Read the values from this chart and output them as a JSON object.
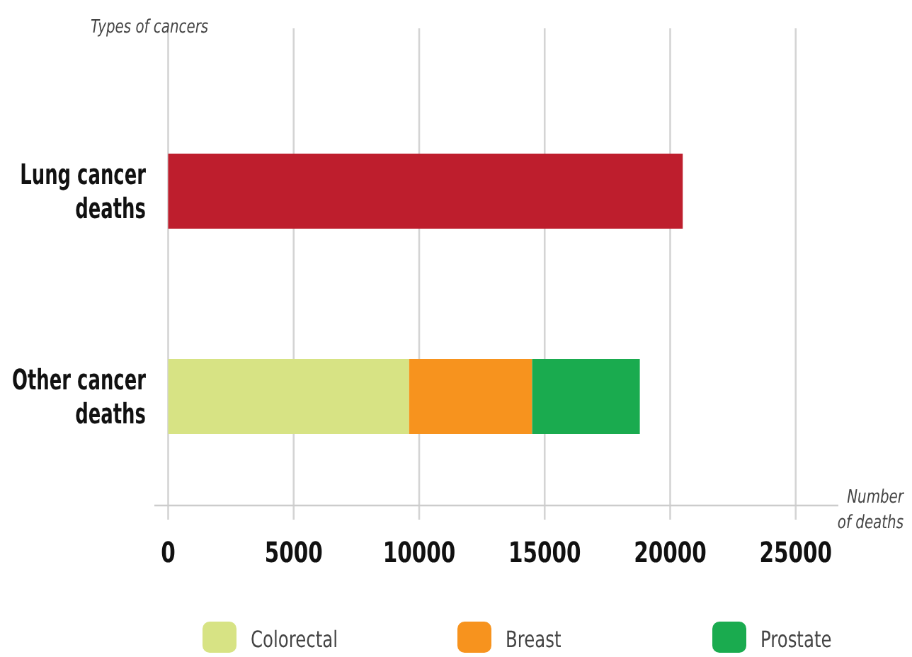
{
  "chart_data": {
    "type": "bar",
    "orientation": "horizontal",
    "stacked": true,
    "ylabel": "Types of cancers",
    "xlabel": "Number of deaths",
    "categories": [
      "Lung cancer deaths",
      "Other cancer deaths"
    ],
    "series": [
      {
        "color": "#be1e2d",
        "values": [
          20500,
          null
        ]
      },
      {
        "name": "Colorectal",
        "color": "#d7e384",
        "values": [
          null,
          9600
        ]
      },
      {
        "name": "Breast",
        "color": "#f7931e",
        "values": [
          null,
          4900
        ]
      },
      {
        "name": "Prostate",
        "color": "#1aab4f",
        "values": [
          null,
          4290
        ]
      }
    ],
    "xlim": [
      -550,
      26700
    ],
    "xticks": [
      0,
      5000,
      10000,
      15000,
      20000,
      25000
    ],
    "grid": "x",
    "legend": "bottom"
  }
}
